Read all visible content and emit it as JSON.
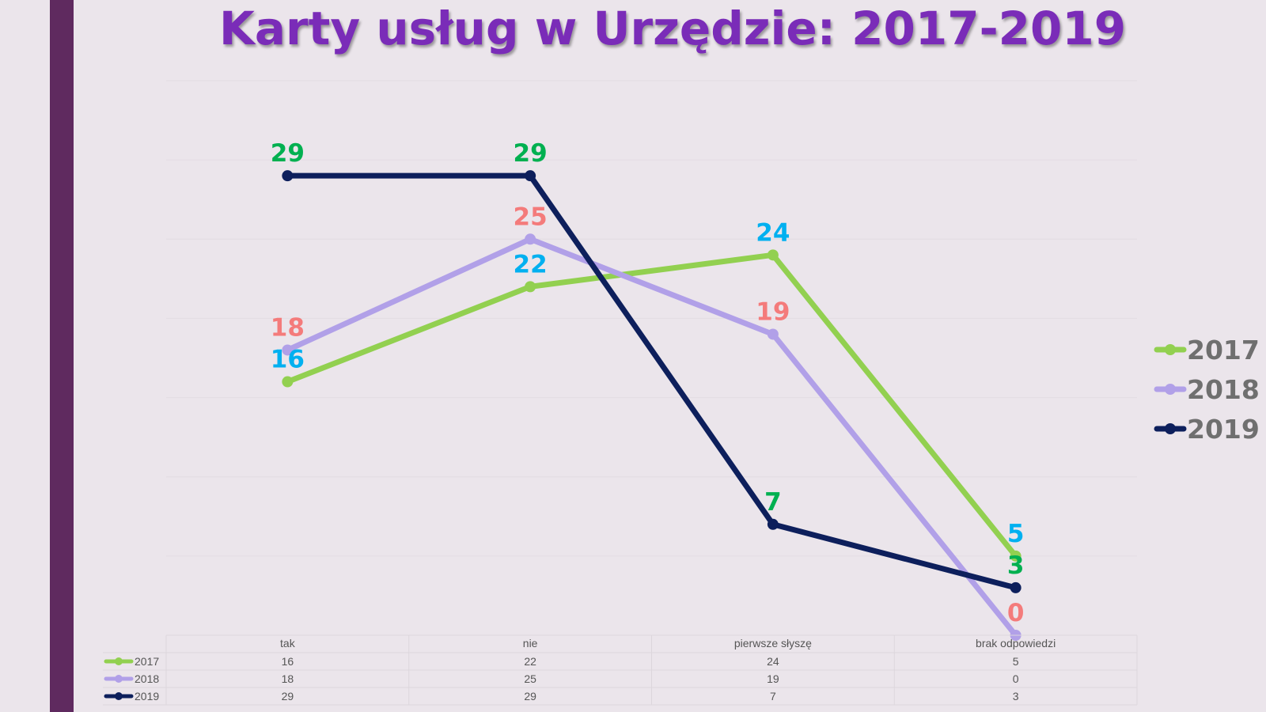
{
  "title": "Karty usług w Urzędzie: 2017-2019",
  "chart_data": {
    "type": "line",
    "title": "Karty usług w Urzędzie: 2017-2019",
    "categories": [
      "tak",
      "nie",
      "pierwsze słyszę",
      "brak odpowiedzi"
    ],
    "series": [
      {
        "name": "2017",
        "values": [
          16,
          22,
          24,
          5
        ],
        "color": "#92d050",
        "label_colors": [
          "#00b0f0",
          "#00b0f0",
          "#00b0f0",
          "#00b0f0"
        ]
      },
      {
        "name": "2018",
        "values": [
          18,
          25,
          19,
          0
        ],
        "color": "#b1a0e8",
        "label_colors": [
          "#f47b7b",
          "#f47b7b",
          "#f47b7b",
          "#f47b7b"
        ]
      },
      {
        "name": "2019",
        "values": [
          29,
          29,
          7,
          3
        ],
        "color": "#0d1f5c",
        "label_colors": [
          "#00b050",
          "#00b050",
          "#00b050",
          "#00b050"
        ]
      }
    ],
    "ylim": [
      0,
      35
    ],
    "grid": true,
    "legend": "right",
    "data_table": true
  },
  "colors": {
    "sidebar": "#5f2a5f",
    "title": "#7a2cb8",
    "background": "#ebe5eb"
  }
}
